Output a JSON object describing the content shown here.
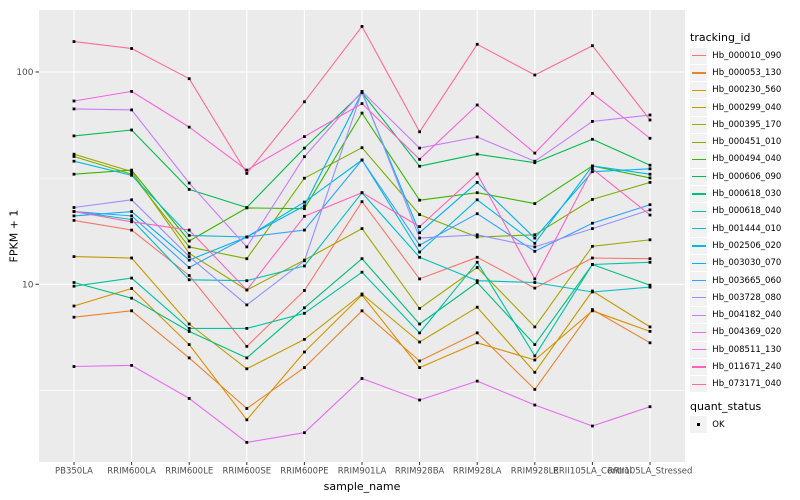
{
  "figure": {
    "bg": "#FFFFFF",
    "panel_bg": "#EBEBEB",
    "grid_color": "#FFFFFF",
    "legend_key_bg": "#F2F2F2",
    "tick_text_color": "#4D4D4D",
    "tick_mark_color": "#333333",
    "point_color": "#000000"
  },
  "chart_data": {
    "type": "line",
    "title": "",
    "xlabel": "sample_name",
    "ylabel": "FPKM + 1",
    "y_scale": "log10",
    "ylim": [
      1.45,
      196
    ],
    "grid": true,
    "legend_position": "right",
    "y_ticks": [
      {
        "label": "10",
        "value": 10
      },
      {
        "label": "100",
        "value": 100
      }
    ],
    "y_minor_gridlines": [
      3.1623,
      31.623
    ],
    "categories": [
      "PB350LA",
      "RRIM600LA",
      "RRIM600LE",
      "RRIM600SE",
      "RRIM600PE",
      "RRIM901LA",
      "RRIM928BA",
      "RRIM928LA",
      "RRIM928LE",
      "RRII105LA_Control",
      "RRII105LA_Stressed"
    ],
    "legend": {
      "tracking_title": "tracking_id",
      "quant_title": "quant_status",
      "quant_value": "OK"
    },
    "series": [
      {
        "name": "Hb_000010_090",
        "color": "#F8766D",
        "values": [
          20,
          18,
          11,
          5.1,
          9.35,
          24.5,
          10.6,
          13.4,
          9.6,
          13.3,
          13.2
        ]
      },
      {
        "name": "Hb_000053_130",
        "color": "#EA8331",
        "values": [
          7.0,
          7.5,
          4.5,
          2.6,
          4.05,
          7.5,
          4.35,
          5.9,
          3.2,
          7.6,
          5.3
        ]
      },
      {
        "name": "Hb_000230_560",
        "color": "#D89000",
        "values": [
          7.9,
          9.55,
          5.2,
          2.3,
          4.8,
          8.9,
          4.05,
          5.3,
          4.4,
          7.5,
          6.0
        ]
      },
      {
        "name": "Hb_000299_040",
        "color": "#C09B00",
        "values": [
          13.5,
          13.3,
          6.5,
          4.0,
          5.5,
          9.0,
          5.35,
          7.8,
          3.85,
          9.3,
          6.3
        ]
      },
      {
        "name": "Hb_000395_170",
        "color": "#A3A500",
        "values": [
          41,
          34,
          14,
          9.4,
          13,
          18.3,
          7.7,
          12.0,
          6.3,
          15.1,
          16.2
        ]
      },
      {
        "name": "Hb_000451_010",
        "color": "#7CAE00",
        "values": [
          40,
          33,
          15,
          13.2,
          31.6,
          44,
          21.3,
          16.7,
          17.1,
          25.1,
          30.2
        ]
      },
      {
        "name": "Hb_000494_040",
        "color": "#39B600",
        "values": [
          33,
          34.5,
          16,
          22.9,
          22.7,
          64,
          24.9,
          27,
          24,
          36.1,
          31.7
        ]
      },
      {
        "name": "Hb_000606_090",
        "color": "#00BB4E",
        "values": [
          50,
          53.3,
          28,
          23,
          43.8,
          80,
          36,
          41,
          37.4,
          48.2,
          36.4
        ]
      },
      {
        "name": "Hb_000618_030",
        "color": "#00BF7D",
        "values": [
          10.2,
          8.6,
          6.0,
          4.5,
          7.75,
          13.2,
          6.5,
          10.2,
          5.2,
          12.4,
          9.9
        ]
      },
      {
        "name": "Hb_000618_040",
        "color": "#00C1A3",
        "values": [
          9.8,
          10.7,
          6.2,
          6.2,
          7.3,
          11.4,
          5.9,
          12.7,
          4.6,
          12.4,
          12.7
        ]
      },
      {
        "name": "Hb_001444_010",
        "color": "#00BFC4",
        "values": [
          22,
          20.2,
          10.5,
          10.4,
          12.2,
          27,
          13.4,
          10.4,
          10.2,
          9.2,
          9.7
        ]
      },
      {
        "name": "Hb_002506_020",
        "color": "#00BAE0",
        "values": [
          38,
          32.6,
          17,
          16.7,
          24.4,
          38.5,
          14.2,
          25,
          15.6,
          36.1,
          33
        ]
      },
      {
        "name": "Hb_003030_070",
        "color": "#00B0F6",
        "values": [
          21,
          22,
          13,
          16.7,
          23.4,
          80,
          17.5,
          30.2,
          16.5,
          33.9,
          35
        ]
      },
      {
        "name": "Hb_003665_060",
        "color": "#35A2FF",
        "values": [
          22,
          21,
          12,
          16.7,
          18,
          38.5,
          15.3,
          21.5,
          14.3,
          19.4,
          23.7
        ]
      },
      {
        "name": "Hb_003728_080",
        "color": "#9590FF",
        "values": [
          23,
          25,
          13.5,
          8.0,
          12.9,
          81,
          16.5,
          17.1,
          15.0,
          18.3,
          22.4
        ]
      },
      {
        "name": "Hb_004182_040",
        "color": "#C77CFF",
        "values": [
          67,
          66.3,
          30,
          15,
          39.9,
          81,
          43.8,
          49.4,
          38,
          58.5,
          62.7
        ]
      },
      {
        "name": "Hb_004369_020",
        "color": "#E76BF3",
        "values": [
          4.1,
          4.15,
          2.9,
          1.8,
          2.0,
          3.6,
          2.85,
          3.5,
          2.7,
          2.15,
          2.65
        ]
      },
      {
        "name": "Hb_008511_130",
        "color": "#FA62DB",
        "values": [
          73,
          81,
          55,
          34.5,
          49.6,
          71,
          38.8,
          69.9,
          41.5,
          79.3,
          48.7
        ]
      },
      {
        "name": "Hb_011671_240",
        "color": "#FF62BC",
        "values": [
          22,
          19.7,
          18,
          9.4,
          20.9,
          27,
          18.7,
          33.1,
          10.6,
          35,
          21.2
        ]
      },
      {
        "name": "Hb_073171_040",
        "color": "#FF6A98",
        "values": [
          139,
          129,
          93,
          33.3,
          72.4,
          164,
          52.3,
          135,
          96.8,
          133,
          59.4
        ]
      }
    ]
  }
}
